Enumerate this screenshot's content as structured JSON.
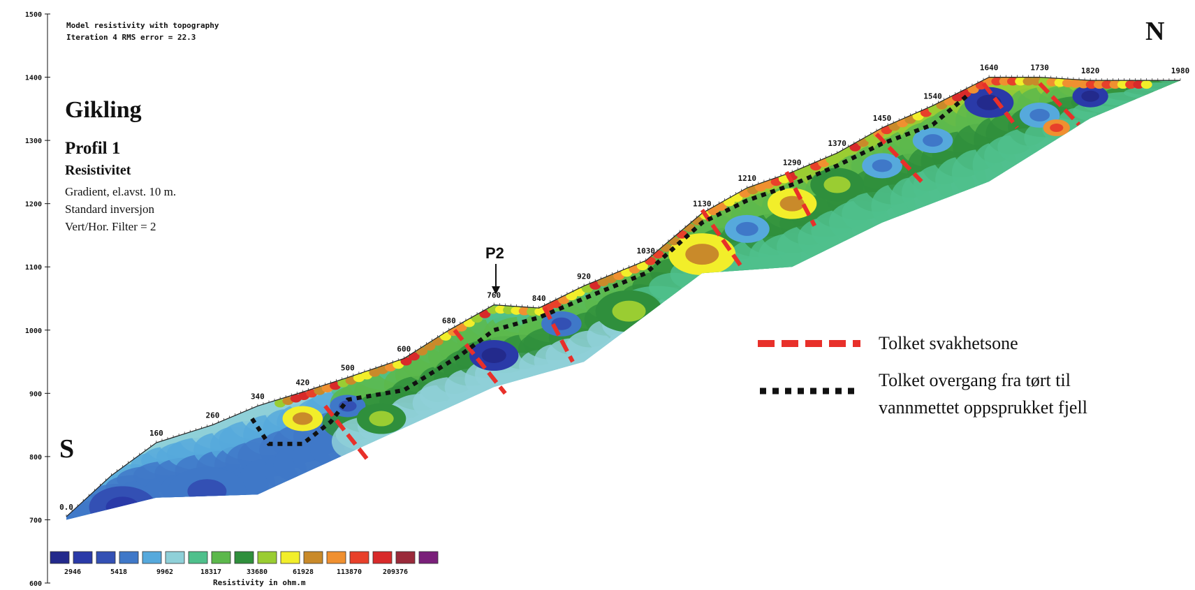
{
  "header": {
    "line1": "Model resistivity with topography",
    "line2": "Iteration 4 RMS error = 22.3"
  },
  "title_block": {
    "site": "Gikling",
    "profile": "Profil 1",
    "quantity": "Resistivitet",
    "details": [
      "Gradient, el.avst. 10 m.",
      "Standard inversjon",
      "Vert/Hor. Filter = 2"
    ]
  },
  "compass": {
    "south": "S",
    "north": "N"
  },
  "marker": {
    "label": "P2"
  },
  "legend": {
    "weak_zone": "Tolket svakhetsone",
    "transition_line1": "Tolket overgang fra tørt til",
    "transition_line2": "vannmettet oppsprukket fjell",
    "colors": {
      "weak_zone": "#e8302a",
      "transition": "#111111"
    }
  },
  "colorbar": {
    "title": "Resistivity in ohm.m",
    "tick_labels": [
      "2946",
      "5418",
      "9962",
      "18317",
      "33680",
      "61928",
      "113870",
      "209376"
    ],
    "colors": [
      "#232a8c",
      "#2a3aa8",
      "#3350b4",
      "#3f78c8",
      "#56a9dc",
      "#8fd0d8",
      "#4fc08c",
      "#5cb84c",
      "#2f8f3c",
      "#9acd32",
      "#f2ee2a",
      "#c98a2a",
      "#f09030",
      "#e8402a",
      "#d82a2a",
      "#9a2a3a",
      "#7a1f7a"
    ]
  },
  "chart_data": {
    "type": "heatmap",
    "title": "Model resistivity with topography",
    "ylabel": "",
    "xlabel": "",
    "ylim": [
      600,
      1500
    ],
    "y_ticks": [
      600,
      700,
      800,
      900,
      1000,
      1100,
      1200,
      1300,
      1400,
      1500
    ],
    "y_tick_labels": [
      "600",
      "700",
      "800",
      "900",
      "1000",
      "1100",
      "1200",
      "1300",
      "1400",
      "1500"
    ],
    "distance_labels": [
      "0.0",
      "160",
      "260",
      "340",
      "420",
      "500",
      "600",
      "680",
      "760",
      "840",
      "920",
      "1030",
      "1130",
      "1210",
      "1290",
      "1370",
      "1450",
      "1540",
      "1640",
      "1730",
      "1820",
      "1980"
    ],
    "surface_profile": [
      {
        "x": 0,
        "z": 705
      },
      {
        "x": 80,
        "z": 770
      },
      {
        "x": 160,
        "z": 822
      },
      {
        "x": 260,
        "z": 850
      },
      {
        "x": 340,
        "z": 880
      },
      {
        "x": 420,
        "z": 902
      },
      {
        "x": 500,
        "z": 925
      },
      {
        "x": 600,
        "z": 955
      },
      {
        "x": 680,
        "z": 1000
      },
      {
        "x": 760,
        "z": 1040
      },
      {
        "x": 840,
        "z": 1035
      },
      {
        "x": 920,
        "z": 1070
      },
      {
        "x": 1030,
        "z": 1110
      },
      {
        "x": 1130,
        "z": 1185
      },
      {
        "x": 1210,
        "z": 1225
      },
      {
        "x": 1290,
        "z": 1250
      },
      {
        "x": 1370,
        "z": 1280
      },
      {
        "x": 1450,
        "z": 1320
      },
      {
        "x": 1540,
        "z": 1355
      },
      {
        "x": 1640,
        "z": 1400
      },
      {
        "x": 1730,
        "z": 1400
      },
      {
        "x": 1820,
        "z": 1395
      },
      {
        "x": 1980,
        "z": 1395
      }
    ],
    "model_bottom": [
      {
        "x": 0,
        "z": 700
      },
      {
        "x": 160,
        "z": 735
      },
      {
        "x": 340,
        "z": 740
      },
      {
        "x": 500,
        "z": 805
      },
      {
        "x": 760,
        "z": 910
      },
      {
        "x": 920,
        "z": 950
      },
      {
        "x": 1130,
        "z": 1090
      },
      {
        "x": 1290,
        "z": 1100
      },
      {
        "x": 1450,
        "z": 1170
      },
      {
        "x": 1640,
        "z": 1235
      },
      {
        "x": 1820,
        "z": 1335
      },
      {
        "x": 1980,
        "z": 1395
      }
    ],
    "marker_x": 840
  }
}
